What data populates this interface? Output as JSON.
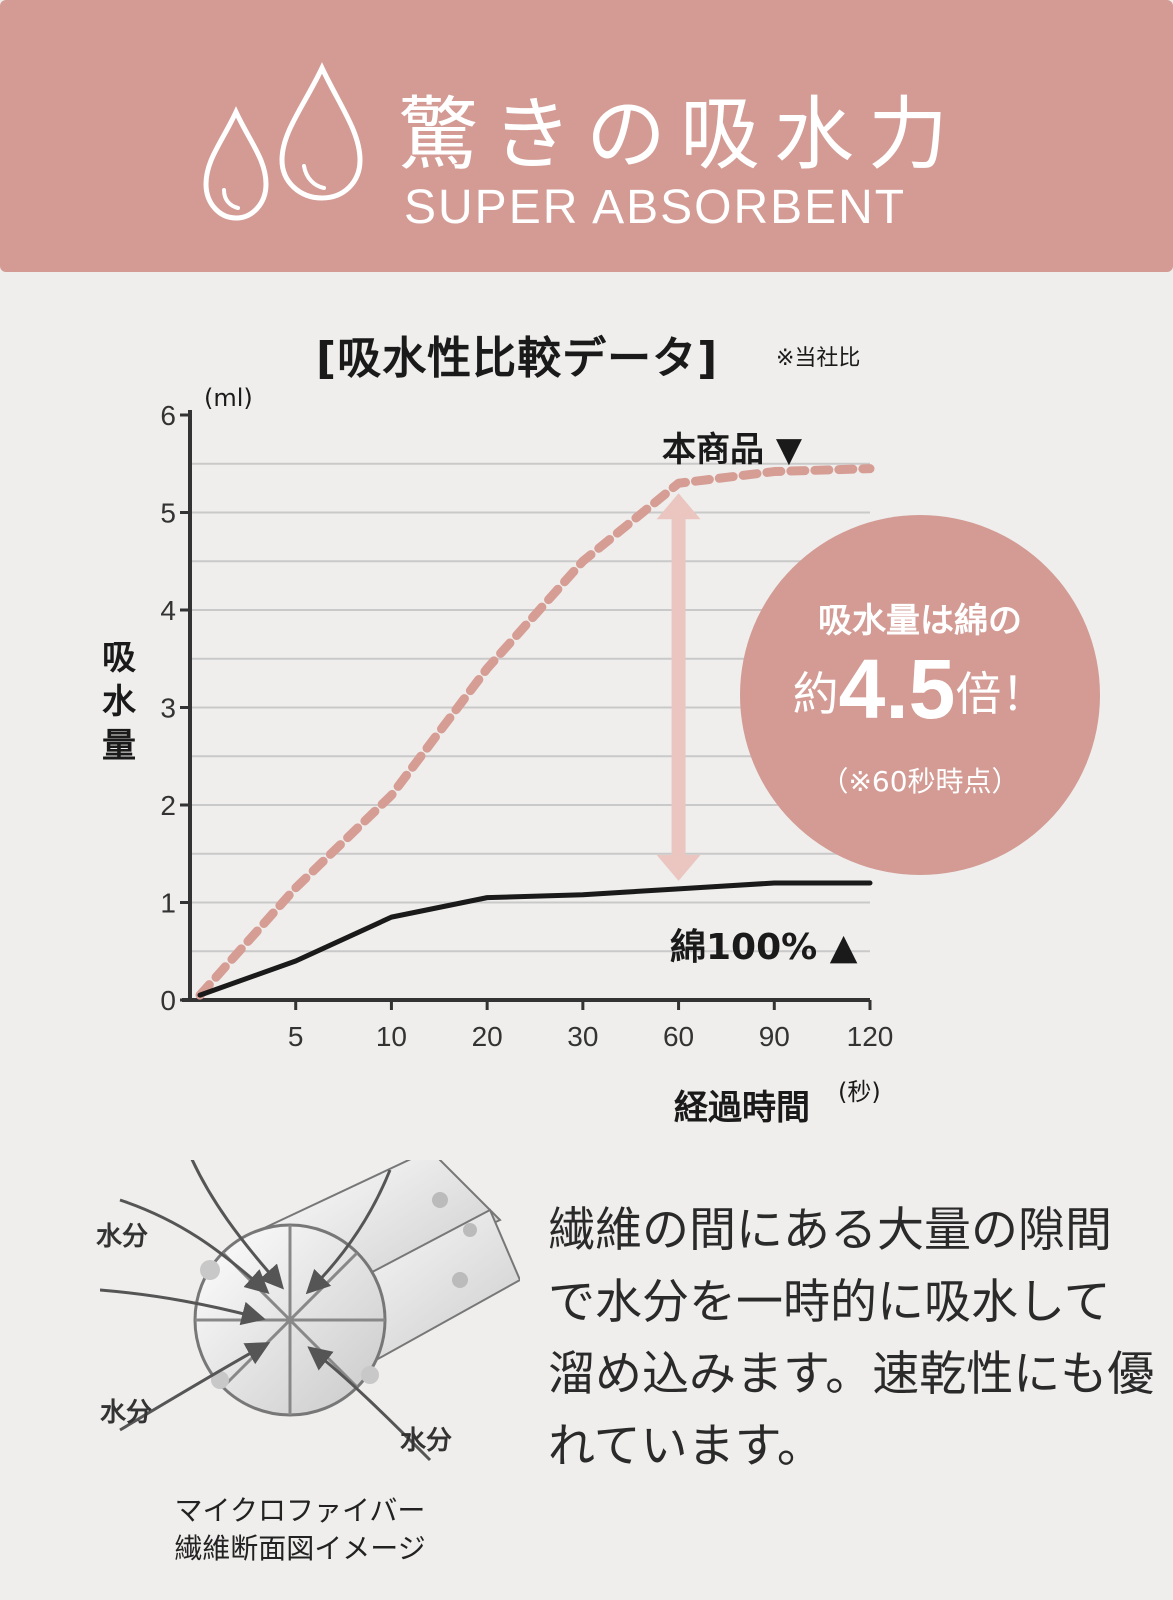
{
  "header": {
    "title_ja": "驚きの吸水力",
    "title_en": "SUPER ABSORBENT",
    "icon": "water-drops-icon"
  },
  "chart_data": {
    "type": "line",
    "title": "[吸水性比較データ]",
    "note": "※当社比",
    "ylabel": "吸水量",
    "y_unit": "(ml)",
    "xlabel": "経過時間",
    "x_unit": "(秒)",
    "categories": [
      "0",
      "5",
      "10",
      "20",
      "30",
      "60",
      "90",
      "120"
    ],
    "x_tick_labels": [
      "5",
      "10",
      "20",
      "30",
      "60",
      "90",
      "120"
    ],
    "y_ticks": [
      "0",
      "1",
      "2",
      "3",
      "4",
      "5",
      "6"
    ],
    "ylim": [
      0,
      6
    ],
    "grid": true,
    "series": [
      {
        "name": "本商品",
        "style": "dashed",
        "color": "#d69d95",
        "values": [
          0.05,
          1.15,
          2.1,
          3.4,
          4.5,
          5.3,
          5.42,
          5.45
        ]
      },
      {
        "name": "綿100%",
        "style": "solid",
        "color": "#1a1a1a",
        "values": [
          0.05,
          0.4,
          0.85,
          1.05,
          1.08,
          1.14,
          1.2,
          1.2
        ]
      }
    ],
    "legend": {
      "product": "本商品 ▼",
      "cotton": "綿100% ▲"
    },
    "annotation": {
      "line1": "吸水量は綿の",
      "prefix": "約",
      "number": "4.5",
      "suffix": "倍！",
      "line3": "（※60秒時点）"
    }
  },
  "fiber": {
    "labels": [
      "水分",
      "水分",
      "水分"
    ],
    "caption_line1": "マイクロファイバー",
    "caption_line2": "繊維断面図イメージ"
  },
  "description": {
    "lines": [
      "繊維の間にある大量の隙間",
      "で水分を一時的に吸水して",
      "溜め込みます。速乾性にも優",
      "れています。"
    ]
  },
  "colors": {
    "accent": "#d39b94",
    "background": "#efeeec",
    "arrow": "#ebc6c1"
  }
}
